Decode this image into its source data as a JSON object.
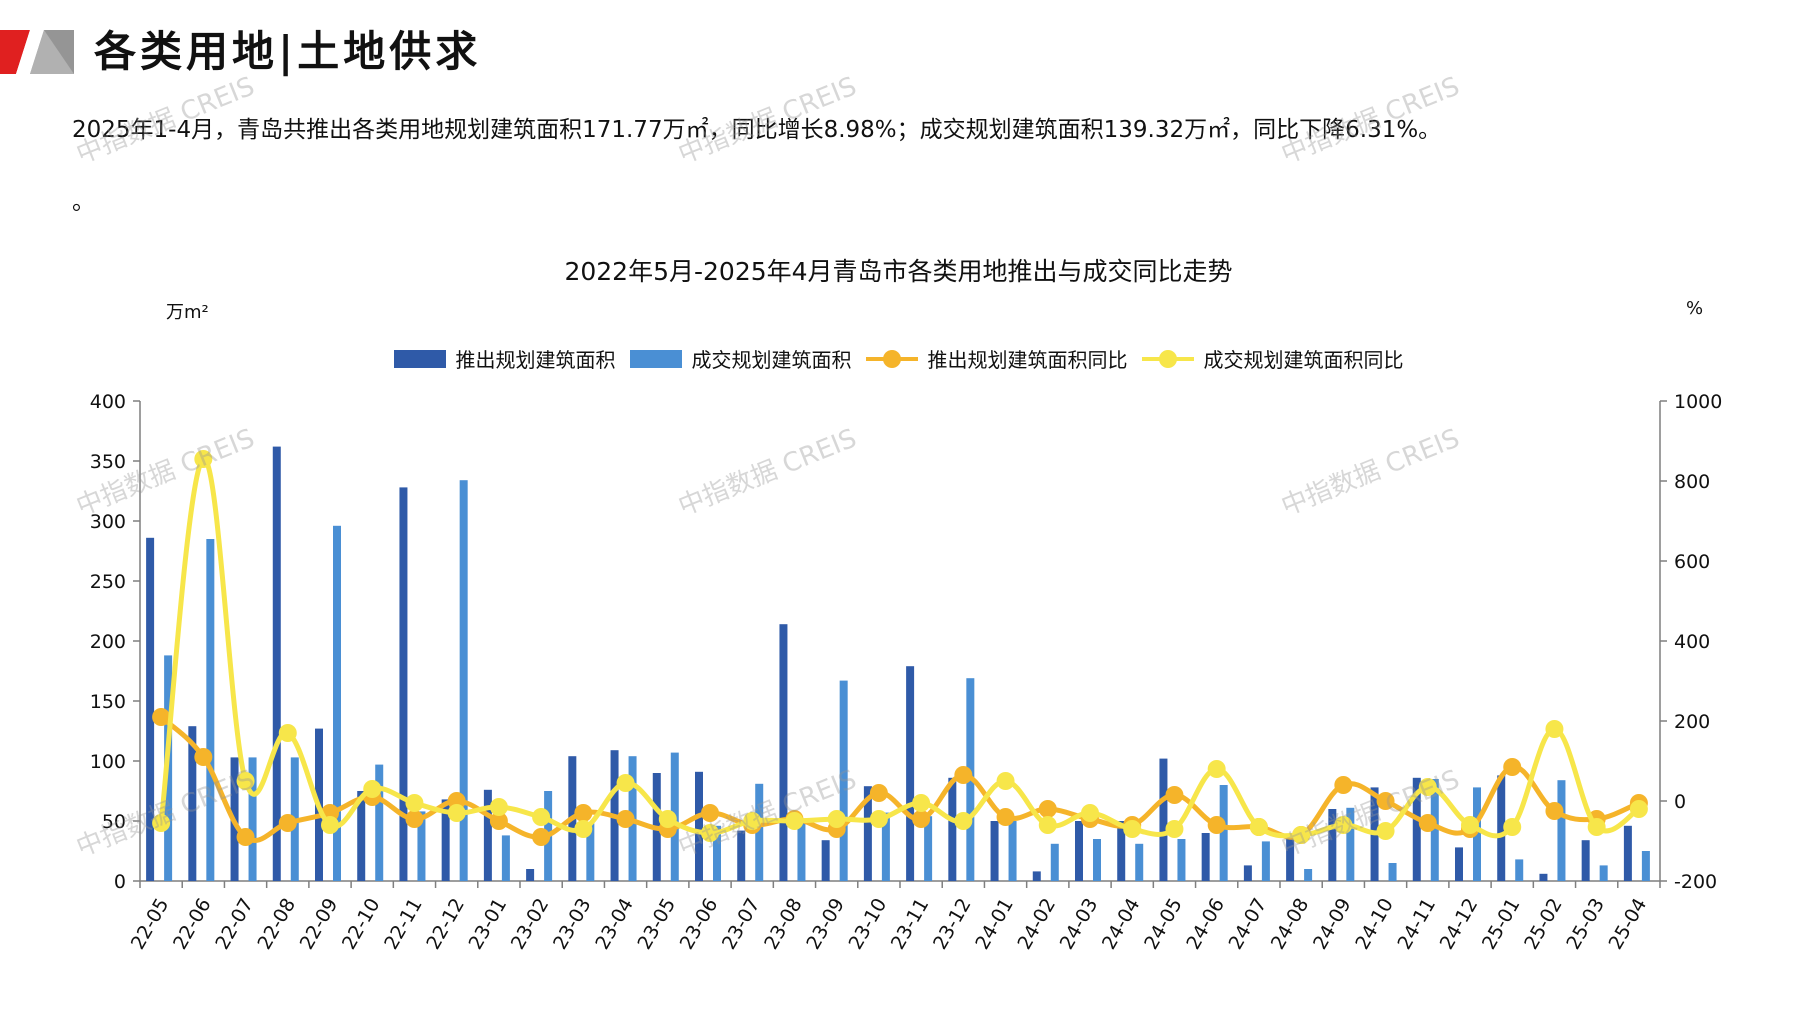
{
  "page_title": "各类用地|土地供求",
  "summary": "2025年1-4月，青岛共推出各类用地规划建筑面积171.77万㎡，同比增长8.98%；成交规划建筑面积139.32万㎡，同比下降6.31%。",
  "trailing_mark": "。",
  "watermark": "中指数据 CREIS",
  "colors": {
    "bar1": "#2f5aa8",
    "bar2": "#4a8fd4",
    "line1": "#f5b42a",
    "line2": "#f7e64a",
    "logo_red": "#e02020",
    "logo_gray": "#8a8a8a"
  },
  "chart_data": {
    "type": "bar",
    "title": "2022年5月-2025年4月青岛市各类用地推出与成交同比走势",
    "y_left_unit": "万m²",
    "y_right_unit": "%",
    "y_left_lim": [
      0,
      400
    ],
    "y_left_ticks": [
      "0",
      "50",
      "100",
      "150",
      "200",
      "250",
      "300",
      "350",
      "400"
    ],
    "y_right_lim": [
      -200,
      1000
    ],
    "y_right_ticks": [
      "-200",
      "0",
      "200",
      "400",
      "600",
      "800",
      "1000"
    ],
    "legend_position": "top",
    "categories": [
      "22-05",
      "22-06",
      "22-07",
      "22-08",
      "22-09",
      "22-10",
      "22-11",
      "22-12",
      "23-01",
      "23-02",
      "23-03",
      "23-04",
      "23-05",
      "23-06",
      "23-07",
      "23-08",
      "23-09",
      "23-10",
      "23-11",
      "23-12",
      "24-01",
      "24-02",
      "24-03",
      "24-04",
      "24-05",
      "24-06",
      "24-07",
      "24-08",
      "24-09",
      "24-10",
      "24-11",
      "24-12",
      "25-01",
      "25-02",
      "25-03",
      "25-04"
    ],
    "series": [
      {
        "name": "推出规划建筑面积",
        "type": "bar",
        "axis": "left",
        "values": [
          286,
          129,
          103,
          362,
          127,
          75,
          328,
          68,
          76,
          10,
          104,
          109,
          90,
          91,
          42,
          214,
          34,
          79,
          179,
          86,
          50,
          8,
          50,
          50,
          102,
          40,
          13,
          35,
          60,
          78,
          86,
          28,
          88,
          6,
          34,
          46
        ]
      },
      {
        "name": "成交规划建筑面积",
        "type": "bar",
        "axis": "left",
        "values": [
          188,
          285,
          103,
          103,
          296,
          97,
          58,
          334,
          38,
          75,
          48,
          104,
          107,
          46,
          81,
          50,
          167,
          57,
          54,
          169,
          50,
          31,
          35,
          31,
          35,
          80,
          33,
          10,
          61,
          15,
          85,
          78,
          18,
          84,
          13,
          25
        ]
      },
      {
        "name": "推出规划建筑面积同比",
        "type": "line",
        "axis": "right",
        "values": [
          210,
          110,
          -90,
          -55,
          -30,
          10,
          -45,
          0,
          -50,
          -90,
          -30,
          -45,
          -70,
          -30,
          -60,
          -45,
          -70,
          20,
          -45,
          65,
          -40,
          -20,
          -45,
          -60,
          15,
          -60,
          -65,
          -85,
          40,
          0,
          -55,
          -70,
          85,
          -25,
          -45,
          -5
        ]
      },
      {
        "name": "成交规划建筑面积同比",
        "type": "line",
        "axis": "right",
        "values": [
          -55,
          855,
          50,
          170,
          -60,
          30,
          -5,
          -30,
          -15,
          -40,
          -70,
          45,
          -45,
          -80,
          -50,
          -50,
          -45,
          -45,
          -5,
          -50,
          50,
          -60,
          -30,
          -70,
          -70,
          80,
          -65,
          -85,
          -60,
          -75,
          35,
          -60,
          -65,
          180,
          -65,
          -20
        ]
      }
    ]
  }
}
